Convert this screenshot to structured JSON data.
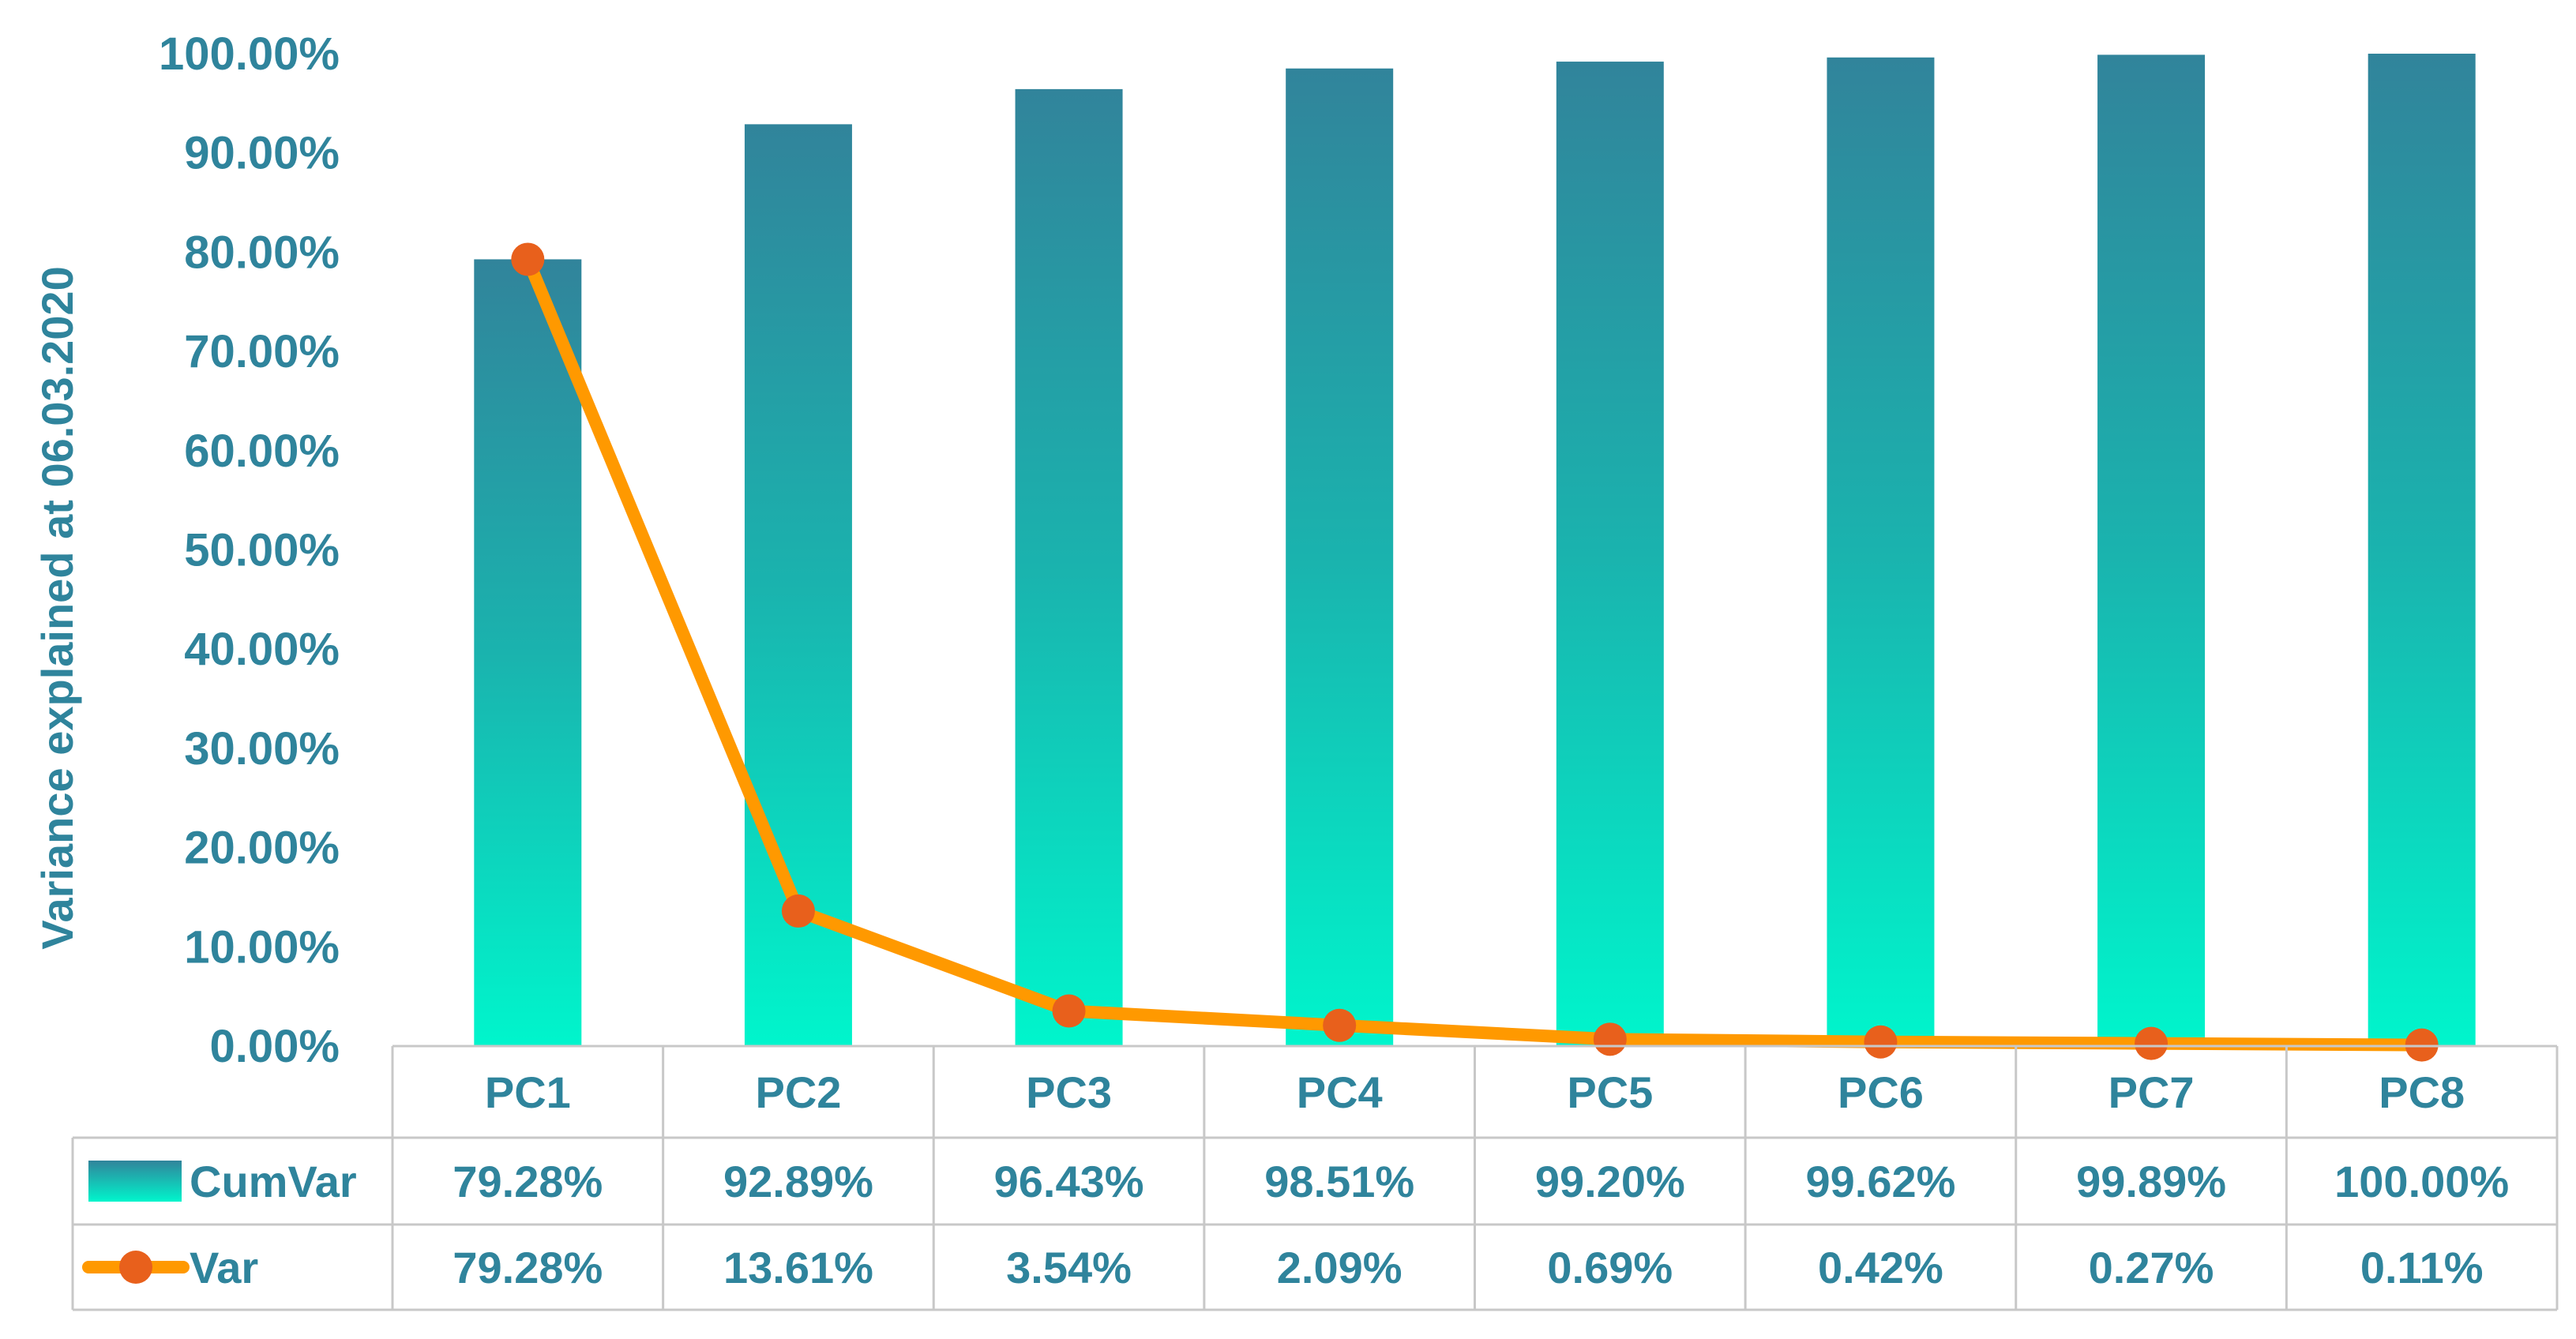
{
  "chart_data": {
    "type": "bar",
    "categories": [
      "PC1",
      "PC2",
      "PC3",
      "PC4",
      "PC5",
      "PC6",
      "PC7",
      "PC8"
    ],
    "series": [
      {
        "name": "CumVar",
        "kind": "bar",
        "values": [
          79.28,
          92.89,
          96.43,
          98.51,
          99.2,
          99.62,
          99.89,
          100.0
        ],
        "labels": [
          "79.28%",
          "92.89%",
          "96.43%",
          "98.51%",
          "99.20%",
          "99.62%",
          "99.89%",
          "100.00%"
        ],
        "color_top": "#31849b",
        "color_bottom": "#00f5cc"
      },
      {
        "name": "Var",
        "kind": "line",
        "values": [
          79.28,
          13.61,
          3.54,
          2.09,
          0.69,
          0.42,
          0.27,
          0.11
        ],
        "labels": [
          "79.28%",
          "13.61%",
          "3.54%",
          "2.09%",
          "0.69%",
          "0.42%",
          "0.27%",
          "0.11%"
        ],
        "line_color": "#ff9900",
        "marker_color": "#e8601c"
      }
    ],
    "ylabel": "Variance explained at 06.03.2020",
    "ylim": [
      0,
      100
    ],
    "yticks": [
      "0.00%",
      "10.00%",
      "20.00%",
      "30.00%",
      "40.00%",
      "50.00%",
      "60.00%",
      "70.00%",
      "80.00%",
      "90.00%",
      "100.00%"
    ],
    "data_table": true,
    "text_color": "#2f849c"
  }
}
